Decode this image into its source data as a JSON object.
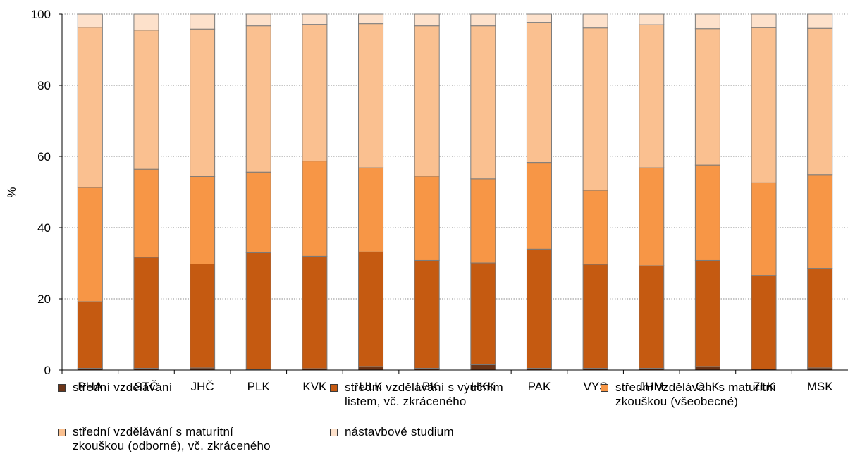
{
  "chart_data": {
    "type": "bar",
    "stacked": true,
    "title": "",
    "xlabel": "",
    "ylabel": "%",
    "ylim": [
      0,
      100
    ],
    "yticks": [
      0,
      20,
      40,
      60,
      80,
      100
    ],
    "grid": "horizontal dotted",
    "legend_placement": "bottom",
    "categories": [
      "PHA",
      "STČ",
      "JHČ",
      "PLK",
      "KVK",
      "ULK",
      "LBK",
      "HKK",
      "PAK",
      "VYS",
      "JHM",
      "OLK",
      "ZLK",
      "MSK"
    ],
    "series": [
      {
        "name": "střední vzdělávání",
        "color": "#6b3518",
        "values": [
          0.5,
          0.5,
          0.6,
          0.2,
          0.4,
          1.0,
          0.5,
          1.5,
          0.5,
          0.5,
          0.5,
          1.0,
          0.3,
          0.6
        ]
      },
      {
        "name": "střední vzdělávání s výučním listem, vč. zkráceného",
        "color": "#c55a11",
        "values": [
          18.7,
          31.2,
          29.2,
          32.8,
          31.6,
          32.2,
          30.3,
          28.6,
          33.5,
          29.2,
          28.8,
          29.8,
          26.3,
          28.0
        ]
      },
      {
        "name": "střední vzdělávání s maturitní zkouškou (všeobecné)",
        "color": "#f79646",
        "values": [
          32.1,
          24.7,
          24.6,
          22.6,
          26.7,
          23.6,
          23.7,
          23.6,
          24.3,
          20.8,
          27.5,
          26.8,
          26.0,
          26.3
        ]
      },
      {
        "name": "střední vzdělávání s maturitní zkouškou (odborné), vč. zkráceného",
        "color": "#fac090",
        "values": [
          45.0,
          39.1,
          41.4,
          41.1,
          38.4,
          40.5,
          42.2,
          43.0,
          39.4,
          45.6,
          40.2,
          38.3,
          43.6,
          41.1
        ]
      },
      {
        "name": "nástavbové studium",
        "color": "#fde1cb",
        "values": [
          3.7,
          4.5,
          4.2,
          3.3,
          2.9,
          2.7,
          3.3,
          3.3,
          2.3,
          3.9,
          3.0,
          4.1,
          3.8,
          4.0
        ]
      }
    ]
  },
  "legend": {
    "items": [
      "střední vzdělávání",
      "střední vzdělávání s výučním listem, vč. zkráceného",
      "střední vzdělávání s maturitní zkouškou (všeobecné)",
      "střední vzdělávání s maturitní zkouškou (odborné), vč. zkráceného",
      "nástavbové studium"
    ],
    "lines": [
      [
        "střední vzdělávání"
      ],
      [
        "střední vzdělávání s výučním",
        "listem, vč. zkráceného"
      ],
      [
        "střední vzdělávání s maturitní",
        "zkouškou (všeobecné)"
      ],
      [
        "střední vzdělávání s maturitní",
        "zkouškou (odborné), vč. zkráceného"
      ],
      [
        "nástavbové studium"
      ]
    ]
  }
}
